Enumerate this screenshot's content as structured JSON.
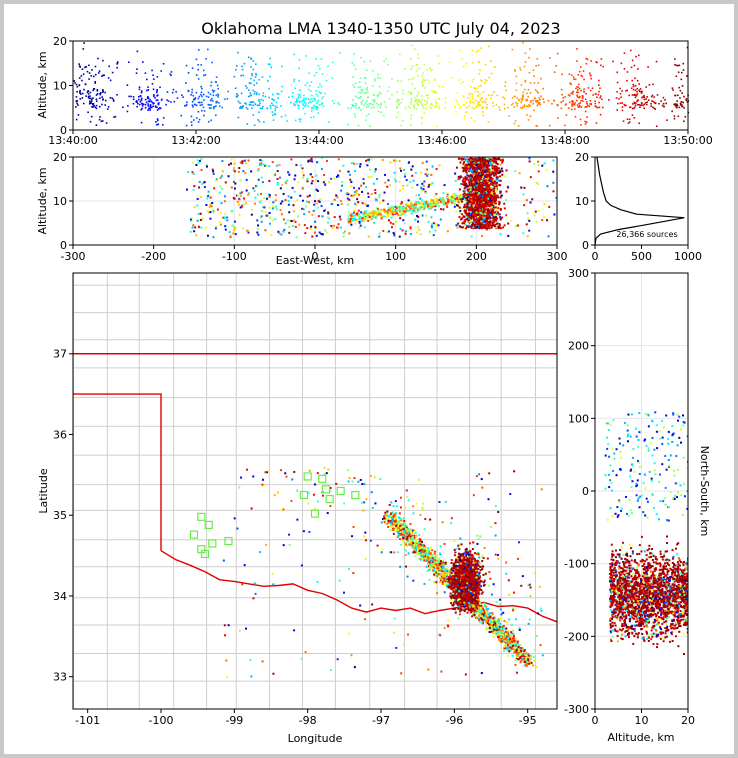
{
  "chart_data": [
    {
      "type": "scatter",
      "panel": "time-altitude",
      "title": "Oklahoma LMA 1340-1350 UTC July 04, 2023",
      "ylabel": "Altitude, km",
      "xlabel": "",
      "x_ticks": [
        "13:40:00",
        "13:42:00",
        "13:44:00",
        "13:46:00",
        "13:48:00",
        "13:50:00"
      ],
      "x_range_minutes": [
        0,
        10
      ],
      "y_ticks": [
        0,
        10,
        20
      ],
      "ylim": [
        0,
        20
      ],
      "color_by": "time",
      "colormap": "jet"
    },
    {
      "type": "scatter",
      "panel": "east-west-altitude",
      "xlabel": "East-West, km",
      "ylabel": "Altitude, km",
      "xlim": [
        -300,
        300
      ],
      "x_ticks": [
        -300,
        -200,
        -100,
        0,
        100,
        200,
        300
      ],
      "ylim": [
        0,
        20
      ],
      "y_ticks": [
        0,
        10,
        20
      ],
      "grid": true
    },
    {
      "type": "line",
      "panel": "altitude-histogram",
      "xlim": [
        0,
        1000
      ],
      "x_ticks": [
        0,
        500,
        1000
      ],
      "ylim": [
        0,
        20
      ],
      "y_ticks": [
        0,
        10,
        20
      ],
      "annotation": "26,366 sources",
      "profile": [
        {
          "alt": 0.0,
          "count": 0
        },
        {
          "alt": 1.5,
          "count": 10
        },
        {
          "alt": 2.5,
          "count": 60
        },
        {
          "alt": 3.5,
          "count": 250
        },
        {
          "alt": 4.5,
          "count": 520
        },
        {
          "alt": 5.5,
          "count": 780
        },
        {
          "alt": 6.2,
          "count": 960
        },
        {
          "alt": 7.0,
          "count": 450
        },
        {
          "alt": 8.0,
          "count": 280
        },
        {
          "alt": 9.0,
          "count": 170
        },
        {
          "alt": 10.0,
          "count": 120
        },
        {
          "alt": 12.0,
          "count": 90
        },
        {
          "alt": 14.0,
          "count": 70
        },
        {
          "alt": 16.0,
          "count": 50
        },
        {
          "alt": 18.0,
          "count": 35
        },
        {
          "alt": 20.0,
          "count": 20
        }
      ]
    },
    {
      "type": "scatter",
      "panel": "plan-view",
      "xlabel": "Longitude",
      "ylabel": "Latitude",
      "xlim": [
        -101.2,
        -94.6
      ],
      "x_ticks": [
        -101,
        -100,
        -99,
        -98,
        -97,
        -96,
        -95
      ],
      "ylim": [
        32.6,
        38.0
      ],
      "y_ticks": [
        33,
        34,
        35,
        36,
        37
      ],
      "stations_lonlat": [
        [
          -99.45,
          34.98
        ],
        [
          -99.35,
          34.88
        ],
        [
          -99.55,
          34.76
        ],
        [
          -99.3,
          34.65
        ],
        [
          -99.45,
          34.58
        ],
        [
          -99.08,
          34.68
        ],
        [
          -98.0,
          35.48
        ],
        [
          -97.8,
          35.45
        ],
        [
          -97.55,
          35.3
        ],
        [
          -97.9,
          35.02
        ],
        [
          -98.05,
          35.25
        ],
        [
          -97.7,
          35.2
        ],
        [
          -97.35,
          35.25
        ],
        [
          -97.75,
          35.32
        ],
        [
          -99.4,
          34.52
        ]
      ]
    },
    {
      "type": "scatter",
      "panel": "altitude-north-south",
      "xlabel": "Altitude, km",
      "ylabel": "North-South, km",
      "xlim": [
        0,
        20
      ],
      "x_ticks": [
        0,
        10,
        20
      ],
      "ylim": [
        -300,
        300
      ],
      "y_ticks": [
        -300,
        -200,
        -100,
        0,
        100,
        200,
        300
      ],
      "grid": true
    }
  ]
}
